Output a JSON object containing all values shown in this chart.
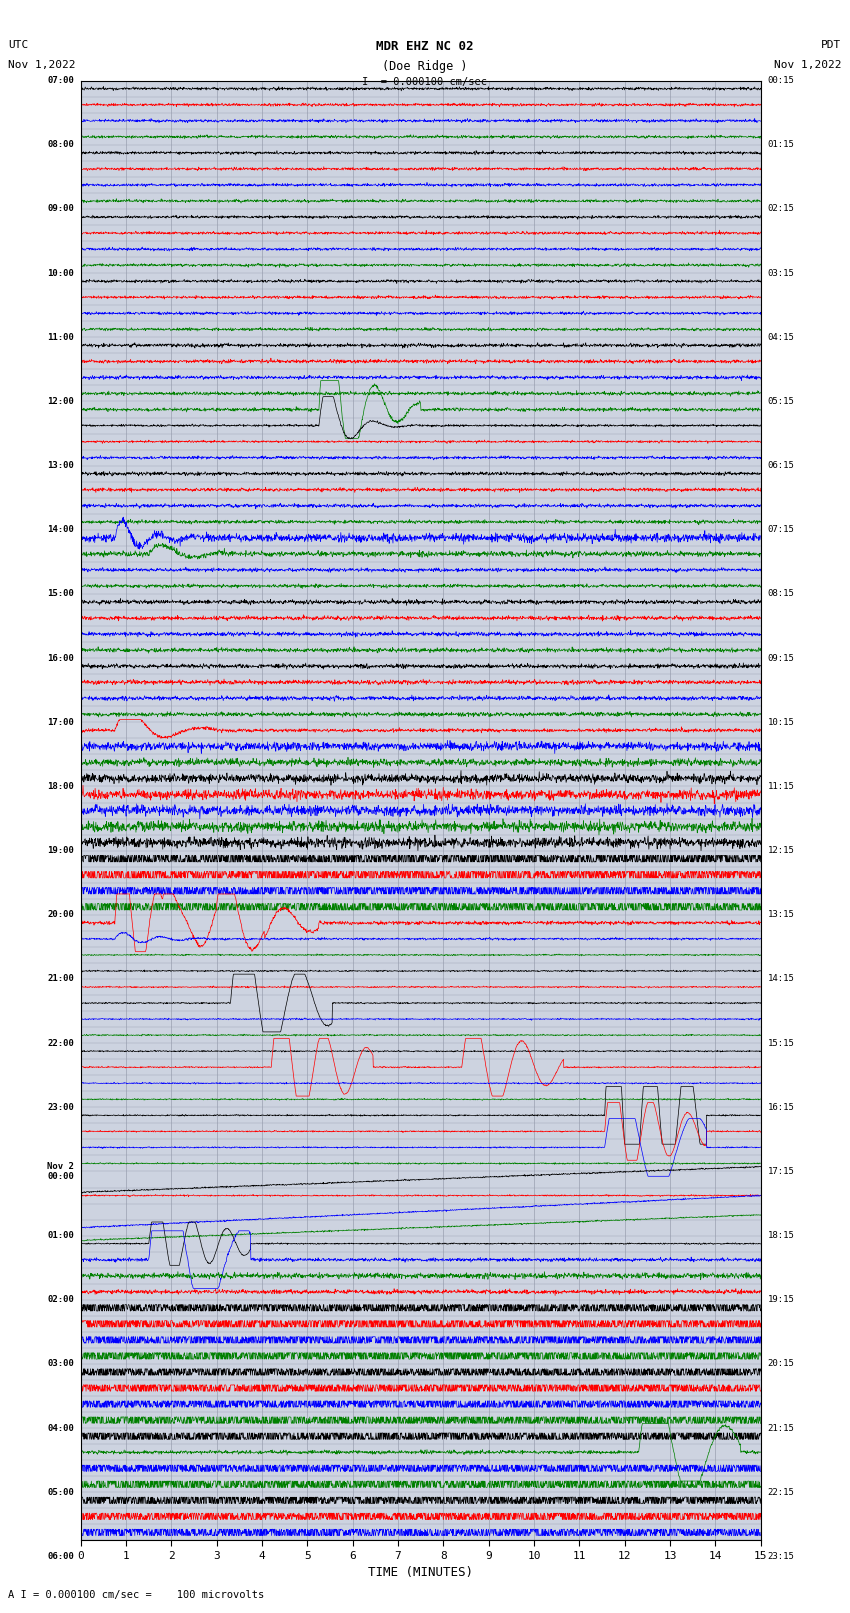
{
  "title_line1": "MDR EHZ NC 02",
  "title_line2": "(Doe Ridge )",
  "scale_text": "I  = 0.000100 cm/sec",
  "left_label_line1": "UTC",
  "left_label_line2": "Nov 1,2022",
  "right_label_line1": "PDT",
  "right_label_line2": "Nov 1,2022",
  "bottom_note": "A I = 0.000100 cm/sec =    100 microvolts",
  "xlabel": "TIME (MINUTES)",
  "xlim": [
    0,
    15
  ],
  "xticks": [
    0,
    1,
    2,
    3,
    4,
    5,
    6,
    7,
    8,
    9,
    10,
    11,
    12,
    13,
    14,
    15
  ],
  "left_times": [
    "07:00",
    "",
    "",
    "",
    "08:00",
    "",
    "",
    "",
    "09:00",
    "",
    "",
    "",
    "10:00",
    "",
    "",
    "",
    "11:00",
    "",
    "",
    "",
    "12:00",
    "",
    "",
    "",
    "13:00",
    "",
    "",
    "",
    "14:00",
    "",
    "",
    "",
    "15:00",
    "",
    "",
    "",
    "16:00",
    "",
    "",
    "",
    "17:00",
    "",
    "",
    "",
    "18:00",
    "",
    "",
    "",
    "19:00",
    "",
    "",
    "",
    "20:00",
    "",
    "",
    "",
    "21:00",
    "",
    "",
    "",
    "22:00",
    "",
    "",
    "",
    "23:00",
    "",
    "",
    "",
    "Nov 2\n00:00",
    "",
    "",
    "",
    "01:00",
    "",
    "",
    "",
    "02:00",
    "",
    "",
    "",
    "03:00",
    "",
    "",
    "",
    "04:00",
    "",
    "",
    "",
    "05:00",
    "",
    "",
    "",
    "06:00",
    "",
    ""
  ],
  "right_times": [
    "00:15",
    "",
    "",
    "",
    "01:15",
    "",
    "",
    "",
    "02:15",
    "",
    "",
    "",
    "03:15",
    "",
    "",
    "",
    "04:15",
    "",
    "",
    "",
    "05:15",
    "",
    "",
    "",
    "06:15",
    "",
    "",
    "",
    "07:15",
    "",
    "",
    "",
    "08:15",
    "",
    "",
    "",
    "09:15",
    "",
    "",
    "",
    "10:15",
    "",
    "",
    "",
    "11:15",
    "",
    "",
    "",
    "12:15",
    "",
    "",
    "",
    "13:15",
    "",
    "",
    "",
    "14:15",
    "",
    "",
    "",
    "15:15",
    "",
    "",
    "",
    "16:15",
    "",
    "",
    "",
    "17:15",
    "",
    "",
    "",
    "18:15",
    "",
    "",
    "",
    "19:15",
    "",
    "",
    "",
    "20:15",
    "",
    "",
    "",
    "21:15",
    "",
    "",
    "",
    "22:15",
    "",
    "",
    "",
    "23:15",
    "",
    ""
  ],
  "n_rows": 91,
  "colors_cycle": [
    "black",
    "red",
    "blue",
    "green"
  ],
  "bg_color": "#cdd3e0",
  "grid_color": "#9aa0b0",
  "seed": 42,
  "fig_width": 8.5,
  "fig_height": 16.13,
  "dpi": 100
}
